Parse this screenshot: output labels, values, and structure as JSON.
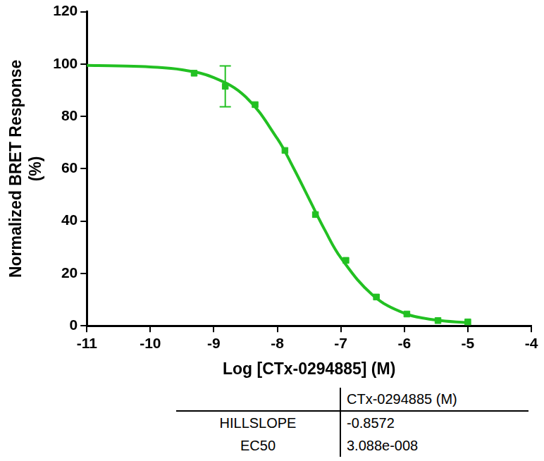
{
  "chart_data": {
    "type": "dose_response",
    "x_label": "Log [CTx-0294885] (M)",
    "y_label": [
      "Normalized BRET Response",
      "(%)"
    ],
    "xlim": [
      -11,
      -4
    ],
    "xticks": [
      -11,
      -10,
      -9,
      -8,
      -7,
      -6,
      -5,
      -4
    ],
    "ylim": [
      0,
      120
    ],
    "yticks": [
      0,
      20,
      40,
      60,
      80,
      100,
      120
    ],
    "grid": false,
    "series": [
      {
        "type": "line",
        "marker": "none",
        "line_style": "solid",
        "color": "#22c022",
        "x": [
          -11,
          -10.5,
          -10,
          -9.5,
          -9,
          -8.5,
          -8,
          -7.75,
          -7.5,
          -7.25,
          -7,
          -6.5,
          -6,
          -5.5,
          -5
        ],
        "values": [
          99.5,
          99.3,
          98.9,
          97.8,
          94.8,
          87.5,
          71.5,
          60.5,
          48.5,
          36.5,
          26.0,
          11.8,
          4.8,
          2.2,
          1.2
        ]
      },
      {
        "type": "scatter",
        "marker": "square",
        "color": "#22c022",
        "x": [
          -9.31,
          -8.82,
          -8.35,
          -7.88,
          -7.4,
          -6.92,
          -6.44,
          -5.96,
          -5.47,
          -5.0
        ],
        "values": [
          96.5,
          91.5,
          84.5,
          67,
          42.5,
          25,
          11,
          4.5,
          2,
          1.5
        ],
        "errors": [
          null,
          7.8,
          null,
          null,
          null,
          null,
          null,
          null,
          null,
          null
        ]
      }
    ]
  },
  "table": {
    "header": [
      "",
      "CTx-0294885 (M)"
    ],
    "rows": [
      [
        "HILLSLOPE",
        "-0.8572"
      ],
      [
        "EC50",
        "3.088e-008"
      ]
    ]
  }
}
